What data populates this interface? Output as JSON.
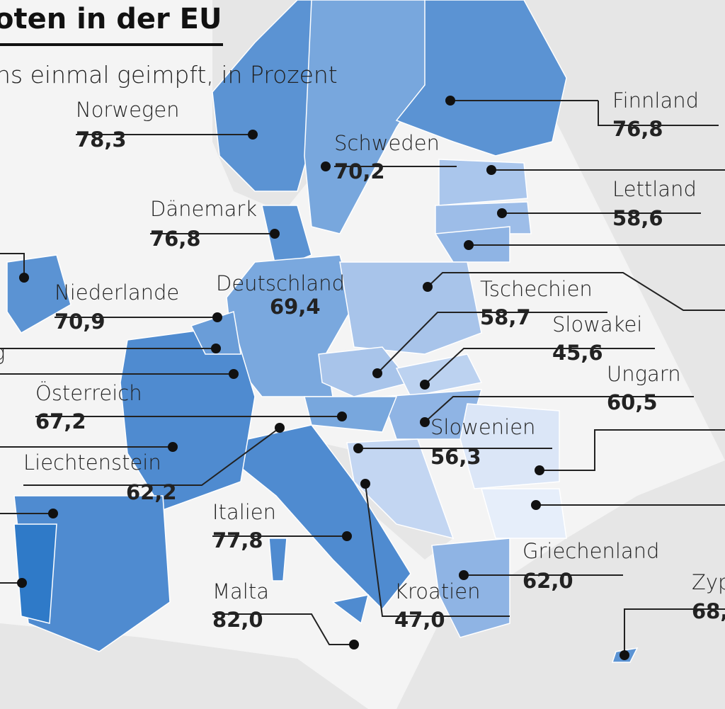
{
  "header": {
    "title": "oten in der EU",
    "subtitle": "ns einmal geimpft, in Prozent"
  },
  "labels": [
    {
      "name": "Norwegen",
      "value": "78,3"
    },
    {
      "name": "Schweden",
      "value": "70,2"
    },
    {
      "name": "Finnland",
      "value": "76,8"
    },
    {
      "name": "Lettland",
      "value": "58,6"
    },
    {
      "name": "Dänemark",
      "value": "76,8"
    },
    {
      "name": "Niederlande",
      "value": "70,9"
    },
    {
      "name": "Deutschland",
      "value": "69,4"
    },
    {
      "name": "Tschechien",
      "value": "58,7"
    },
    {
      "name": "Slowakei",
      "value": "45,6"
    },
    {
      "name": "Ungarn",
      "value": "60,5"
    },
    {
      "name": "Österreich",
      "value": "67,2"
    },
    {
      "name": "Liechtenstein",
      "value": "62,2"
    },
    {
      "name": "Slowenien",
      "value": "56,3"
    },
    {
      "name": "Italien",
      "value": "77,8"
    },
    {
      "name": "Malta",
      "value": "82,0"
    },
    {
      "name": "Kroatien",
      "value": "47,0"
    },
    {
      "name": "Griechenland",
      "value": "62,0"
    },
    {
      "name": "Zyp",
      "value": "68,"
    },
    {
      "name": "g"
    }
  ]
}
